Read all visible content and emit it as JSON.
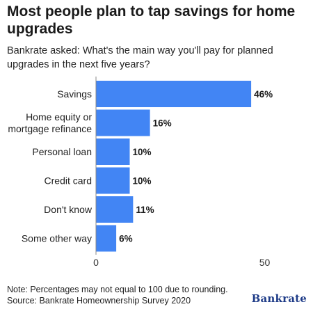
{
  "title": "Most people plan to tap savings for home upgrades",
  "subtitle": "Bankrate asked: What's the main way you'll pay for planned upgrades in the next five years?",
  "note": "Note: Percentages may not equal to 100 due to rounding.",
  "source": "Source: Bankrate Homeownership Survey 2020",
  "logo": "Bankrate",
  "colors": {
    "bar": "#4285f4",
    "axis": "#888888",
    "text": "#222222"
  },
  "chart_data": {
    "type": "bar",
    "orientation": "horizontal",
    "categories": [
      [
        "Savings"
      ],
      [
        "Home equity or",
        "mortgage refinance"
      ],
      [
        "Personal loan"
      ],
      [
        "Credit card"
      ],
      [
        "Don't know"
      ],
      [
        "Some other way"
      ]
    ],
    "values": [
      46,
      16,
      10,
      10,
      11,
      6
    ],
    "data_labels": [
      "46%",
      "16%",
      "10%",
      "10%",
      "11%",
      "6%"
    ],
    "xlim": [
      0,
      50
    ],
    "xticks": [
      "0",
      "50"
    ],
    "grid": false,
    "legend": "none"
  }
}
